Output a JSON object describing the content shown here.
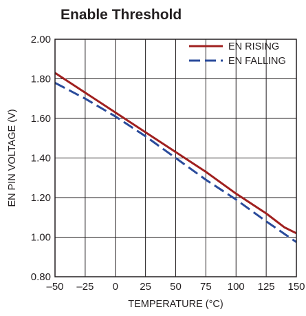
{
  "chart_data": {
    "type": "line",
    "title": "Enable Threshold",
    "xlabel": "TEMPERATURE (°C)",
    "ylabel": "EN PIN VOLTAGE (V)",
    "xlim": [
      -50,
      150
    ],
    "ylim": [
      0.8,
      2.0
    ],
    "x_ticks": [
      -50,
      -25,
      0,
      25,
      50,
      75,
      100,
      125,
      150
    ],
    "x_tick_labels": [
      "–50",
      "–25",
      "0",
      "25",
      "50",
      "75",
      "100",
      "125",
      "150"
    ],
    "y_ticks": [
      0.8,
      1.0,
      1.2,
      1.4,
      1.6,
      1.8,
      2.0
    ],
    "y_tick_labels": [
      "0.80",
      "1.00",
      "1.20",
      "1.40",
      "1.60",
      "1.80",
      "2.00"
    ],
    "grid": true,
    "legend_position": "top-right",
    "series": [
      {
        "name": "EN RISING",
        "color": "#a0201f",
        "dash": "solid",
        "x": [
          -50,
          -25,
          0,
          25,
          50,
          75,
          100,
          125,
          140,
          150
        ],
        "y": [
          1.83,
          1.73,
          1.63,
          1.53,
          1.43,
          1.33,
          1.22,
          1.12,
          1.05,
          1.02
        ]
      },
      {
        "name": "EN FALLING",
        "color": "#2a4b9b",
        "dash": "dashed",
        "x": [
          -50,
          -25,
          0,
          25,
          50,
          75,
          100,
          125,
          150
        ],
        "y": [
          1.78,
          1.7,
          1.61,
          1.51,
          1.4,
          1.29,
          1.19,
          1.08,
          0.975
        ]
      }
    ]
  }
}
